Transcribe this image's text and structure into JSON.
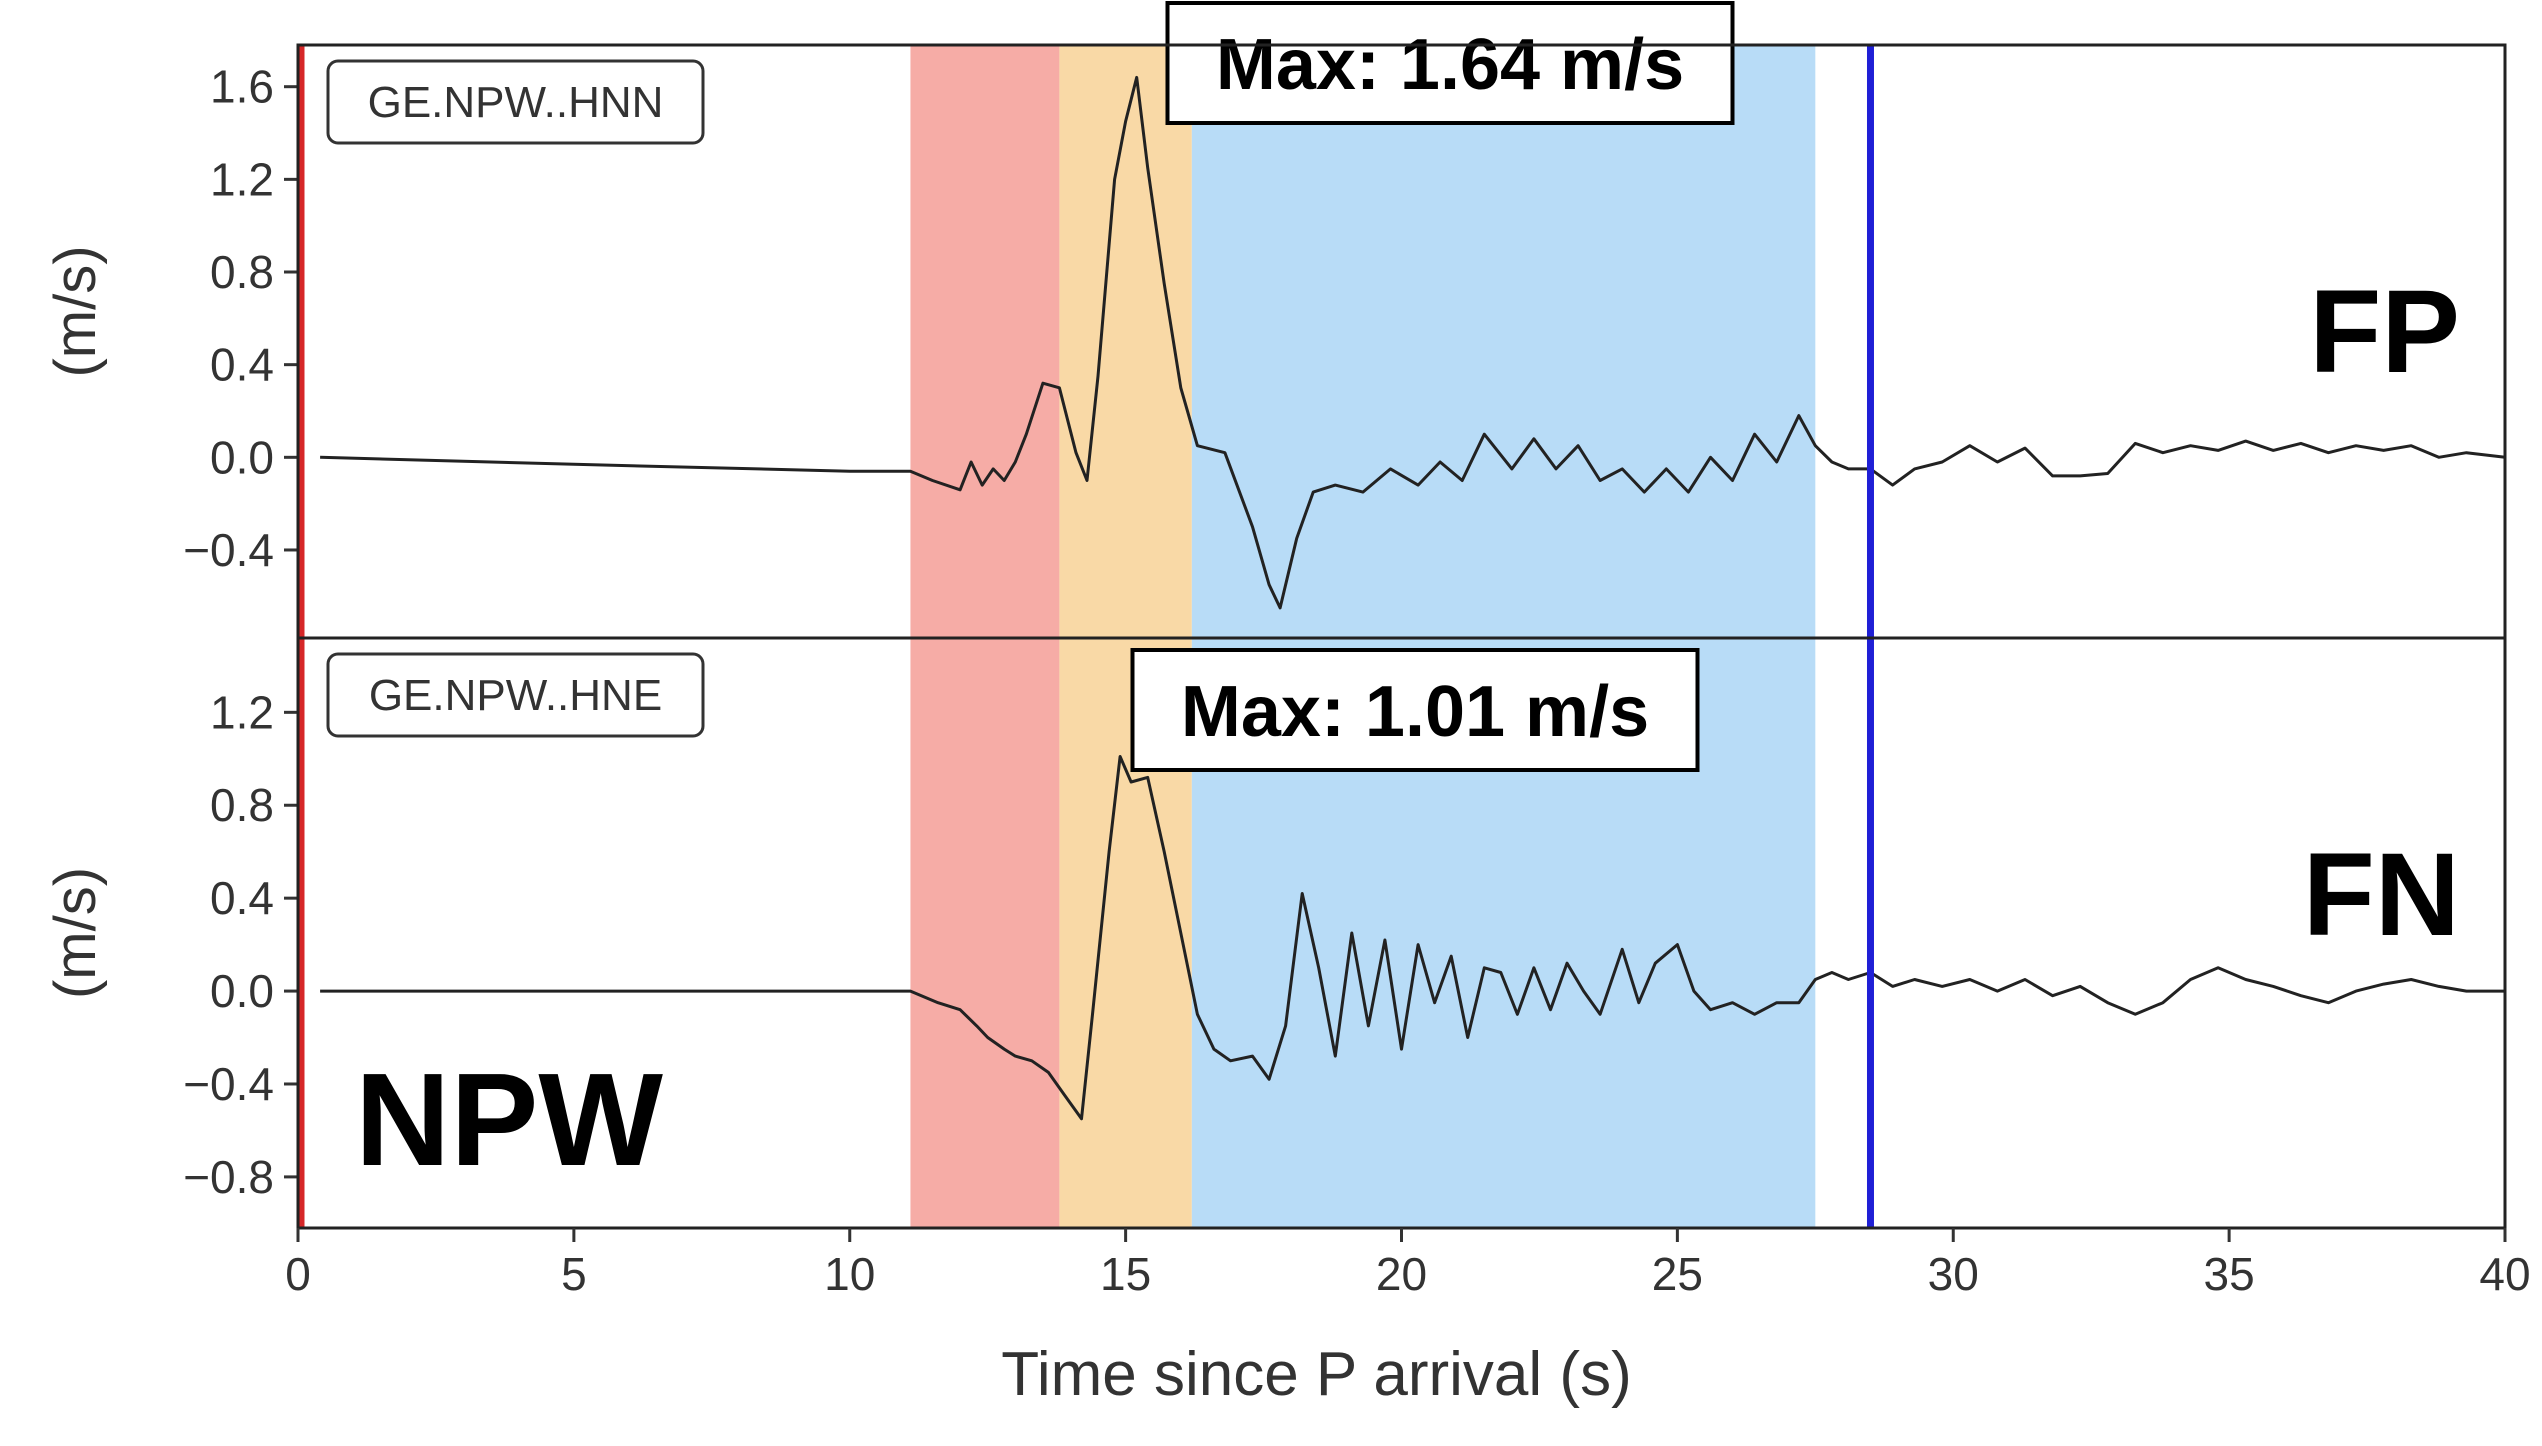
{
  "chart_data": {
    "type": "line",
    "site_label": "NPW",
    "xlabel": "Time since P arrival (s)",
    "xlim": [
      0,
      40
    ],
    "xticks": [
      0,
      5,
      10,
      15,
      20,
      25,
      30,
      35,
      40
    ],
    "shaded_intervals": [
      {
        "start": 11.1,
        "end": 13.8,
        "color": "#f6aca6"
      },
      {
        "start": 13.8,
        "end": 16.2,
        "color": "#f9d9a6"
      },
      {
        "start": 16.2,
        "end": 27.5,
        "color": "#b8dcf7"
      }
    ],
    "vertical_lines": [
      {
        "x": 0,
        "color": "#d62728"
      },
      {
        "x": 28.5,
        "color": "#1f1fd6"
      }
    ],
    "panels": [
      {
        "station": "GE.NPW..HNN",
        "component": "FP",
        "max_label": "Max: 1.64 m/s",
        "ylabel": "(m/s)",
        "ylim": [
          -0.78,
          1.78
        ],
        "yticks": [
          "1.6",
          "1.2",
          "0.8",
          "0.4",
          "0.0",
          "−0.4"
        ],
        "ytick_values": [
          1.6,
          1.2,
          0.8,
          0.4,
          0.0,
          -0.4
        ],
        "x": [
          0.4,
          5,
          10,
          11.1,
          11.5,
          12.0,
          12.2,
          12.4,
          12.6,
          12.8,
          13.0,
          13.2,
          13.5,
          13.8,
          14.1,
          14.3,
          14.5,
          14.8,
          15.0,
          15.2,
          15.4,
          15.7,
          16.0,
          16.3,
          16.8,
          17.3,
          17.6,
          17.8,
          18.1,
          18.4,
          18.8,
          19.3,
          19.8,
          20.3,
          20.7,
          21.1,
          21.5,
          22.0,
          22.4,
          22.8,
          23.2,
          23.6,
          24.0,
          24.4,
          24.8,
          25.2,
          25.6,
          26.0,
          26.4,
          26.8,
          27.2,
          27.5,
          27.8,
          28.1,
          28.5,
          28.9,
          29.3,
          29.8,
          30.3,
          30.8,
          31.3,
          31.8,
          32.3,
          32.8,
          33.3,
          33.8,
          34.3,
          34.8,
          35.3,
          35.8,
          36.3,
          36.8,
          37.3,
          37.8,
          38.3,
          38.8,
          39.3,
          40.0
        ],
        "y": [
          0.0,
          -0.03,
          -0.06,
          -0.06,
          -0.1,
          -0.14,
          -0.02,
          -0.12,
          -0.05,
          -0.1,
          -0.02,
          0.1,
          0.32,
          0.3,
          0.02,
          -0.1,
          0.35,
          1.2,
          1.45,
          1.64,
          1.25,
          0.75,
          0.3,
          0.05,
          0.02,
          -0.3,
          -0.55,
          -0.65,
          -0.35,
          -0.15,
          -0.12,
          -0.15,
          -0.05,
          -0.12,
          -0.02,
          -0.1,
          0.1,
          -0.05,
          0.08,
          -0.05,
          0.05,
          -0.1,
          -0.05,
          -0.15,
          -0.05,
          -0.15,
          0.0,
          -0.1,
          0.1,
          -0.02,
          0.18,
          0.05,
          -0.02,
          -0.05,
          -0.05,
          -0.12,
          -0.05,
          -0.02,
          0.05,
          -0.02,
          0.04,
          -0.08,
          -0.08,
          -0.07,
          0.06,
          0.02,
          0.05,
          0.03,
          0.07,
          0.03,
          0.06,
          0.02,
          0.05,
          0.03,
          0.05,
          0.0,
          0.02,
          0.0
        ]
      },
      {
        "station": "GE.NPW..HNE",
        "component": "FN",
        "max_label": "Max: 1.01 m/s",
        "ylabel": "(m/s)",
        "ylim": [
          -1.02,
          1.52
        ],
        "yticks": [
          "1.2",
          "0.8",
          "0.4",
          "0.0",
          "−0.4",
          "−0.8"
        ],
        "ytick_values": [
          1.2,
          0.8,
          0.4,
          0.0,
          -0.4,
          -0.8
        ],
        "x": [
          0.4,
          5,
          10,
          11.1,
          11.6,
          12.0,
          12.3,
          12.5,
          12.8,
          13.0,
          13.3,
          13.6,
          13.9,
          14.2,
          14.4,
          14.7,
          14.9,
          15.1,
          15.4,
          15.7,
          16.0,
          16.3,
          16.6,
          16.9,
          17.3,
          17.6,
          17.9,
          18.2,
          18.5,
          18.8,
          19.1,
          19.4,
          19.7,
          20.0,
          20.3,
          20.6,
          20.9,
          21.2,
          21.5,
          21.8,
          22.1,
          22.4,
          22.7,
          23.0,
          23.3,
          23.6,
          24.0,
          24.3,
          24.6,
          25.0,
          25.3,
          25.6,
          26.0,
          26.4,
          26.8,
          27.2,
          27.5,
          27.8,
          28.1,
          28.5,
          28.9,
          29.3,
          29.8,
          30.3,
          30.8,
          31.3,
          31.8,
          32.3,
          32.8,
          33.3,
          33.8,
          34.3,
          34.8,
          35.3,
          35.8,
          36.3,
          36.8,
          37.3,
          37.8,
          38.3,
          38.8,
          39.3,
          40.0
        ],
        "y": [
          0.0,
          0.0,
          0.0,
          0.0,
          -0.05,
          -0.08,
          -0.15,
          -0.2,
          -0.25,
          -0.28,
          -0.3,
          -0.35,
          -0.45,
          -0.55,
          -0.1,
          0.6,
          1.01,
          0.9,
          0.92,
          0.6,
          0.25,
          -0.1,
          -0.25,
          -0.3,
          -0.28,
          -0.38,
          -0.15,
          0.42,
          0.1,
          -0.28,
          0.25,
          -0.15,
          0.22,
          -0.25,
          0.2,
          -0.05,
          0.15,
          -0.2,
          0.1,
          0.08,
          -0.1,
          0.1,
          -0.08,
          0.12,
          0.0,
          -0.1,
          0.18,
          -0.05,
          0.12,
          0.2,
          0.0,
          -0.08,
          -0.05,
          -0.1,
          -0.05,
          -0.05,
          0.05,
          0.08,
          0.05,
          0.08,
          0.02,
          0.05,
          0.02,
          0.05,
          0.0,
          0.05,
          -0.02,
          0.02,
          -0.05,
          -0.1,
          -0.05,
          0.05,
          0.1,
          0.05,
          0.02,
          -0.02,
          -0.05,
          0.0,
          0.03,
          0.05,
          0.02,
          0.0,
          0.0
        ]
      }
    ]
  }
}
